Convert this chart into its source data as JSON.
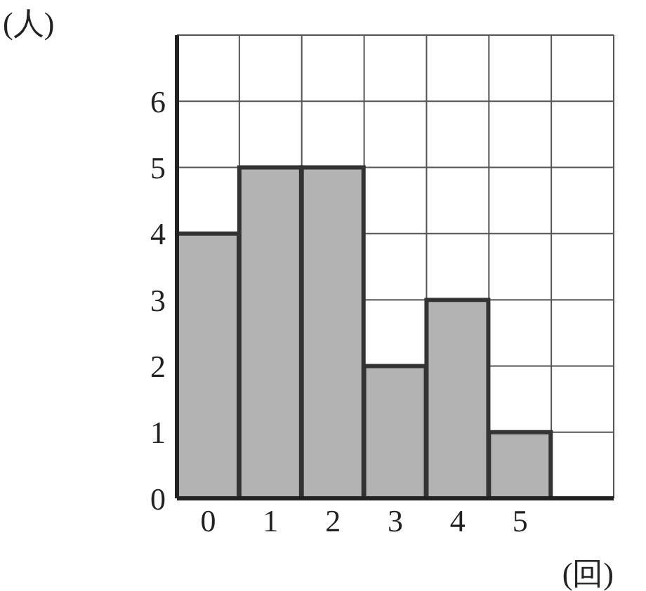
{
  "chart_data": {
    "type": "bar",
    "xlabel": "(回)",
    "ylabel": "(人)",
    "categories": [
      "0",
      "1",
      "2",
      "3",
      "4",
      "5",
      null
    ],
    "values": [
      4,
      5,
      5,
      2,
      3,
      1,
      null
    ],
    "color": "#b3b3b3",
    "ylim": [
      0,
      7
    ],
    "yticks": [
      0,
      1,
      2,
      3,
      4,
      5,
      6
    ],
    "grid": true
  }
}
